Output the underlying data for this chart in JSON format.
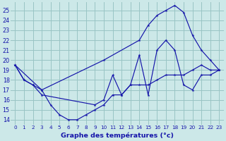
{
  "xlabel": "Graphe des températures (°c)",
  "bg_color": "#cce8e8",
  "grid_color": "#99c4c4",
  "line_color": "#1515aa",
  "x_ticks": [
    0,
    1,
    2,
    3,
    4,
    5,
    6,
    7,
    8,
    9,
    10,
    11,
    12,
    13,
    14,
    15,
    16,
    17,
    18,
    19,
    20,
    21,
    22,
    23
  ],
  "y_ticks": [
    14,
    15,
    16,
    17,
    18,
    19,
    20,
    21,
    22,
    23,
    24,
    25
  ],
  "ylim": [
    13.5,
    25.8
  ],
  "xlim": [
    -0.5,
    23.5
  ],
  "line1": {
    "x": [
      0,
      1,
      2,
      3,
      4,
      5,
      6,
      7,
      8,
      9,
      10,
      11,
      12,
      13,
      14,
      15,
      16,
      17,
      18,
      19,
      20,
      21,
      22,
      23
    ],
    "y": [
      19.5,
      18.0,
      17.5,
      17.0,
      15.5,
      14.5,
      14.0,
      14.0,
      14.5,
      15.0,
      15.5,
      16.5,
      16.5,
      17.5,
      17.5,
      17.5,
      18.0,
      18.5,
      18.5,
      18.5,
      19.0,
      19.5,
      19.0,
      19.0
    ]
  },
  "line2": {
    "x": [
      0,
      3,
      10,
      14,
      15,
      16,
      17,
      18,
      19,
      20,
      21,
      22,
      23
    ],
    "y": [
      19.5,
      17.0,
      20.0,
      22.0,
      23.5,
      24.5,
      25.0,
      25.5,
      24.8,
      22.5,
      21.0,
      20.0,
      19.0
    ]
  },
  "line3": {
    "x": [
      0,
      1,
      2,
      3,
      9,
      10,
      11,
      12,
      13,
      14,
      15,
      16,
      17,
      18,
      19,
      20,
      21,
      22,
      23
    ],
    "y": [
      19.5,
      18.0,
      17.5,
      16.5,
      15.5,
      16.0,
      18.5,
      16.5,
      17.5,
      20.5,
      16.5,
      21.0,
      22.0,
      21.0,
      17.5,
      17.0,
      18.5,
      18.5,
      19.0
    ]
  }
}
